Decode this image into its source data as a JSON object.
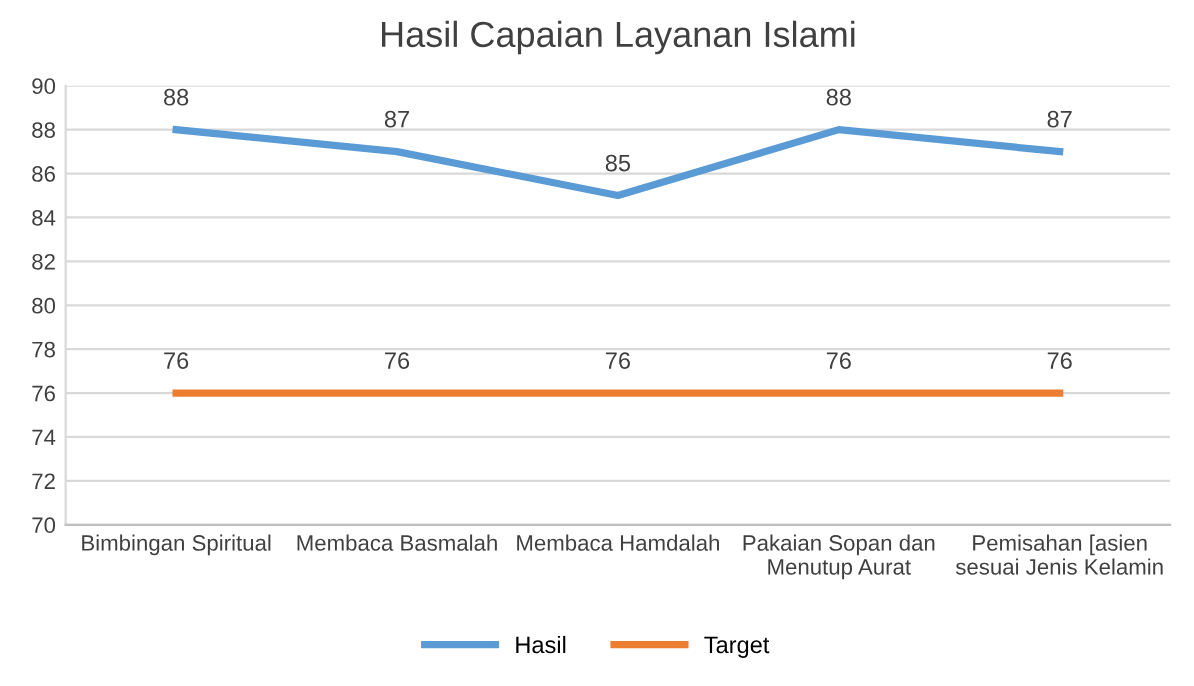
{
  "chart_data": {
    "type": "line",
    "title": "Hasil Capaian Layanan Islami",
    "categories": [
      "Bimbingan Spiritual",
      "Membaca Basmalah",
      "Membaca Hamdalah",
      "Pakaian Sopan dan\nMenutup Aurat",
      "Pemisahan [asien\nsesuai Jenis Kelamin"
    ],
    "series": [
      {
        "name": "Hasil",
        "color": "#5b9bd5",
        "values": [
          88,
          87,
          85,
          88,
          87
        ]
      },
      {
        "name": "Target",
        "color": "#ed7d31",
        "values": [
          76,
          76,
          76,
          76,
          76
        ]
      }
    ],
    "ylim": [
      70,
      90
    ],
    "yticks": [
      70,
      72,
      74,
      76,
      78,
      80,
      82,
      84,
      86,
      88,
      90
    ],
    "grid": "y",
    "legend": "bottom",
    "data_labels": true,
    "marker": "none",
    "line_style": "solid"
  }
}
